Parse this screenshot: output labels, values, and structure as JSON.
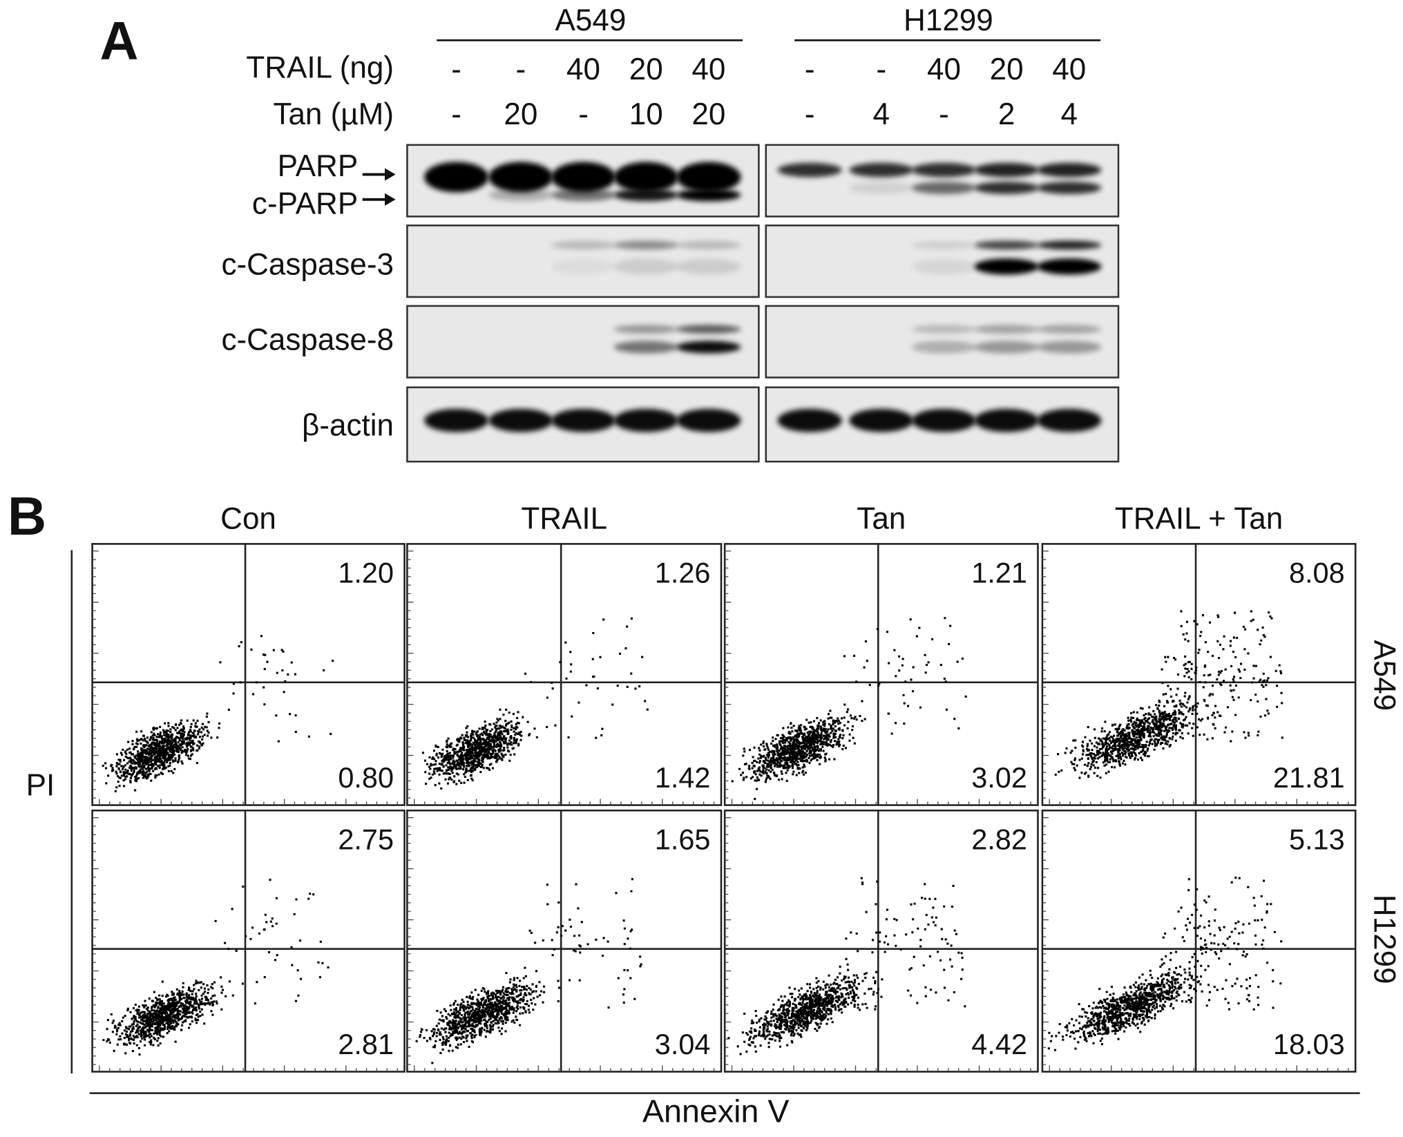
{
  "panel_a": {
    "label": "A",
    "cell_lines": [
      "A549",
      "H1299"
    ],
    "treatments": [
      {
        "label": "TRAIL (ng)",
        "lanes": [
          [
            "-",
            "-",
            "40",
            "20",
            "40"
          ],
          [
            "-",
            "-",
            "40",
            "20",
            "40"
          ]
        ]
      },
      {
        "label": "Tan (µM)",
        "lanes": [
          [
            "-",
            "20",
            "-",
            "10",
            "20"
          ],
          [
            "-",
            "4",
            "-",
            "2",
            "4"
          ]
        ]
      }
    ],
    "blots": [
      "PARP",
      "c-PARP",
      "c-Caspase-3",
      "c-Caspase-8",
      "β-actin"
    ]
  },
  "panel_b": {
    "label": "B",
    "columns": [
      "Con",
      "TRAIL",
      "Tan",
      "TRAIL + Tan"
    ],
    "rows": [
      "A549",
      "H1299"
    ],
    "y_label": "PI",
    "x_label": "Annexin V",
    "quadrants": [
      [
        [
          "1.20",
          "0.80"
        ],
        [
          "1.26",
          "1.42"
        ],
        [
          "1.21",
          "3.02"
        ],
        [
          "8.08",
          "21.81"
        ]
      ],
      [
        [
          "2.75",
          "2.81"
        ],
        [
          "1.65",
          "3.04"
        ],
        [
          "2.82",
          "4.42"
        ],
        [
          "5.13",
          "18.03"
        ]
      ]
    ]
  }
}
